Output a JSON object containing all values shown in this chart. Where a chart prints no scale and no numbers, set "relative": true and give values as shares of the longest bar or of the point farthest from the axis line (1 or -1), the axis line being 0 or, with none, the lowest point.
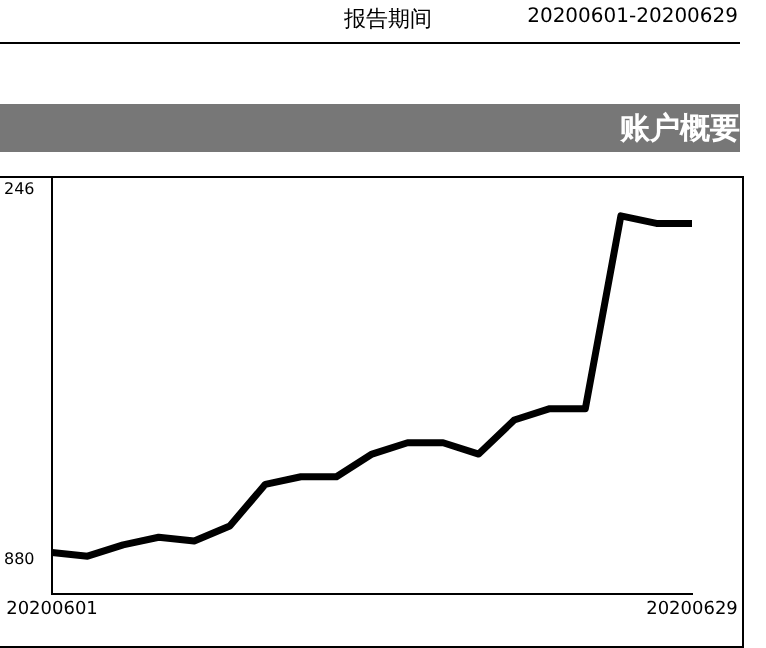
{
  "chart_data": {
    "type": "line",
    "title": "账户概要",
    "relative": true,
    "legend": false,
    "grid": false,
    "marker": "none",
    "line_style": "solid",
    "categories": [
      "20200601",
      null,
      null,
      null,
      null,
      null,
      null,
      null,
      null,
      null,
      null,
      null,
      null,
      null,
      null,
      null,
      null,
      null,
      "20200629"
    ],
    "series": [
      {
        "color": "#000000",
        "values": [
          0.11,
          0.1,
          0.13,
          0.15,
          0.14,
          0.18,
          0.29,
          0.31,
          0.31,
          0.37,
          0.4,
          0.4,
          0.37,
          0.46,
          0.49,
          0.49,
          1.0,
          0.98,
          0.98
        ]
      }
    ],
    "annotations": [
      "报告期间",
      "20200601-20200629",
      "246",
      "880"
    ]
  }
}
